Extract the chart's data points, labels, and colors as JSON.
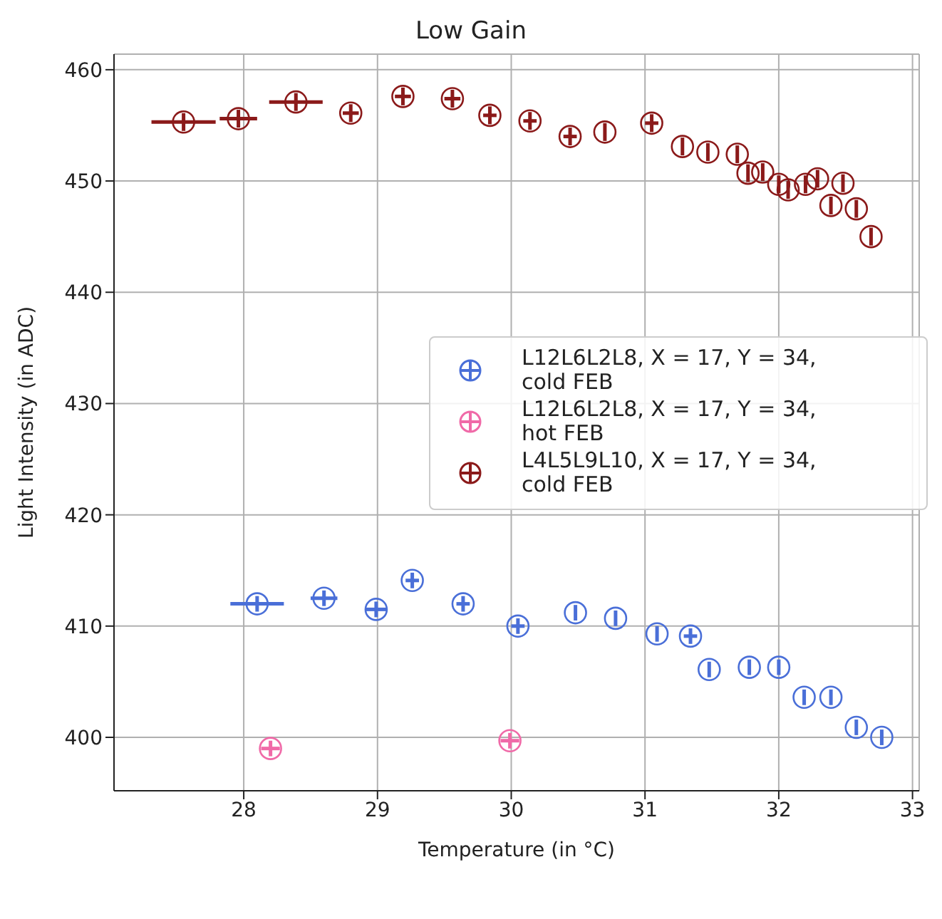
{
  "chart_data": {
    "type": "scatter",
    "title": "Low Gain",
    "xlabel": "Temperature (in °C)",
    "ylabel": "Light Intensity (in ADC)",
    "xlim": [
      27.03,
      33.05
    ],
    "ylim": [
      395.2,
      461.4
    ],
    "xticks": [
      28,
      29,
      30,
      31,
      32,
      33
    ],
    "yticks": [
      400,
      410,
      420,
      430,
      440,
      450,
      460
    ],
    "grid": true,
    "legend": "right",
    "marker": "circle",
    "series": [
      {
        "name": "L12L6L2L8, X = 17, Y = 34,\n cold FEB",
        "color": "#4a6fd8",
        "x": [
          28.1,
          28.6,
          28.99,
          29.26,
          29.64,
          30.05,
          30.48,
          30.78,
          31.09,
          31.34,
          31.48,
          31.78,
          32.0,
          32.19,
          32.39,
          32.58,
          32.77
        ],
        "values": [
          412.0,
          412.5,
          411.5,
          414.1,
          412.0,
          410.0,
          411.2,
          410.7,
          409.3,
          409.1,
          406.1,
          406.3,
          406.3,
          403.6,
          403.6,
          400.9,
          400.0
        ],
        "xerrors": [
          0.2,
          0.1,
          0.08,
          0.05,
          0.05,
          0.05,
          null,
          null,
          null,
          0.05,
          null,
          null,
          null,
          null,
          null,
          null,
          null
        ],
        "errors": [
          0.7,
          0.7,
          0.7,
          0.7,
          0.7,
          0.7,
          0.7,
          0.7,
          0.7,
          0.7,
          0.7,
          0.7,
          0.7,
          0.7,
          0.7,
          0.7,
          0.7
        ]
      },
      {
        "name": "L12L6L2L8, X = 17, Y = 34,\n hot FEB",
        "color": "#f06aa8",
        "x": [
          28.2,
          29.99
        ],
        "values": [
          399.0,
          399.7
        ],
        "xerrors": [
          0.07,
          0.07
        ],
        "errors": [
          0.7,
          0.7
        ]
      },
      {
        "name": "L4L5L9L10, X = 17, Y = 34,\n cold FEB",
        "color": "#8b1a1a",
        "x": [
          27.55,
          27.96,
          28.39,
          28.8,
          29.19,
          29.56,
          29.84,
          30.14,
          30.44,
          30.7,
          31.05,
          31.28,
          31.47,
          31.69,
          31.77,
          31.88,
          32.0,
          32.07,
          32.2,
          32.29,
          32.39,
          32.48,
          32.58,
          32.69
        ],
        "values": [
          455.3,
          455.6,
          457.1,
          456.1,
          457.6,
          457.4,
          455.9,
          455.4,
          454.0,
          454.4,
          455.2,
          453.1,
          452.6,
          452.4,
          450.7,
          450.8,
          449.7,
          449.2,
          449.7,
          450.2,
          447.8,
          449.8,
          447.5,
          445.0
        ],
        "xerrors": [
          0.24,
          0.14,
          0.2,
          0.06,
          0.06,
          0.06,
          0.05,
          0.05,
          0.05,
          null,
          0.05,
          null,
          null,
          null,
          null,
          null,
          null,
          null,
          null,
          null,
          null,
          null,
          null,
          null
        ],
        "errors": [
          0.8,
          0.8,
          0.8,
          0.8,
          0.8,
          0.8,
          0.8,
          0.8,
          0.8,
          0.8,
          0.8,
          0.8,
          0.8,
          0.8,
          0.8,
          0.8,
          0.8,
          0.8,
          0.8,
          0.8,
          0.8,
          0.8,
          0.8,
          0.8
        ]
      }
    ]
  }
}
